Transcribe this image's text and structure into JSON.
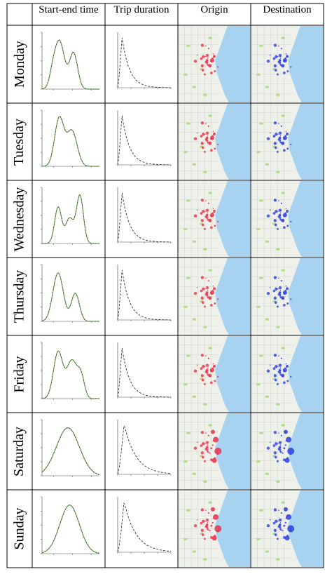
{
  "headers": {
    "start_end_time": "Start-end time",
    "trip_duration": "Trip duration",
    "origin": "Origin",
    "destination": "Destination"
  },
  "days": [
    "Monday",
    "Tuesday",
    "Wednesday",
    "Thursday",
    "Friday",
    "Saturday",
    "Sunday"
  ],
  "colors": {
    "grid_border": "#000000",
    "curve_green": "#6aa84f",
    "curve_dark": "#333333",
    "water": "#a8d3f0",
    "land": "#eef0ea",
    "park": "#b5d98b",
    "origin_marker": "#e8304a",
    "destination_marker": "#2c3ee0"
  },
  "icons": {
    "origin_map": "map-icon",
    "destination_map": "map-icon"
  }
}
